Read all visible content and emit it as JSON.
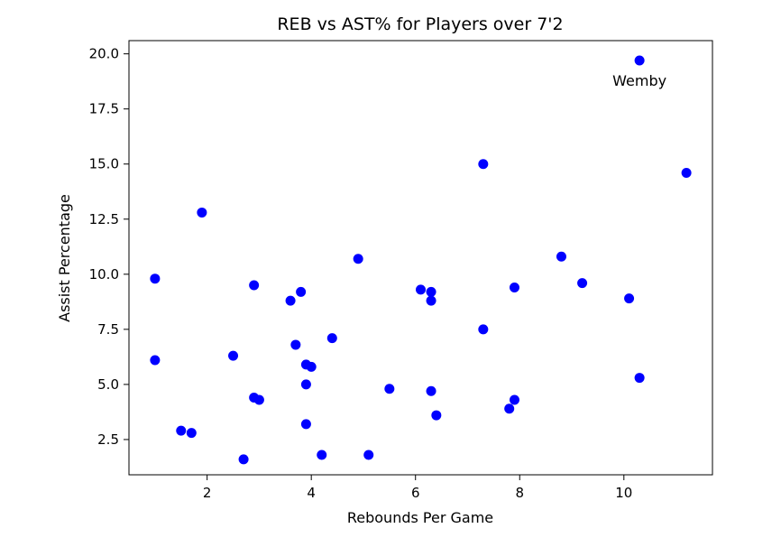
{
  "chart_data": {
    "type": "scatter",
    "title": "REB vs AST% for Players over 7'2",
    "xlabel": "Rebounds Per Game",
    "ylabel": "Assist Percentage",
    "xlim": [
      0.5,
      11.7
    ],
    "ylim": [
      0.9,
      20.6
    ],
    "xticks": [
      2,
      4,
      6,
      8,
      10
    ],
    "xtick_labels": [
      "2",
      "4",
      "6",
      "8",
      "10"
    ],
    "yticks": [
      2.5,
      5.0,
      7.5,
      10.0,
      12.5,
      15.0,
      17.5,
      20.0
    ],
    "ytick_labels": [
      "2.5",
      "5.0",
      "7.5",
      "10.0",
      "12.5",
      "15.0",
      "17.5",
      "20.0"
    ],
    "grid": false,
    "legend": "none",
    "marker_color": "#0000ff",
    "points": [
      {
        "x": 10.3,
        "y": 19.7
      },
      {
        "x": 7.3,
        "y": 15.0
      },
      {
        "x": 11.2,
        "y": 14.6
      },
      {
        "x": 1.9,
        "y": 12.8
      },
      {
        "x": 4.9,
        "y": 10.7
      },
      {
        "x": 8.8,
        "y": 10.8
      },
      {
        "x": 1.0,
        "y": 9.8
      },
      {
        "x": 9.2,
        "y": 9.6
      },
      {
        "x": 2.9,
        "y": 9.5
      },
      {
        "x": 7.9,
        "y": 9.4
      },
      {
        "x": 6.1,
        "y": 9.3
      },
      {
        "x": 6.3,
        "y": 9.2
      },
      {
        "x": 3.8,
        "y": 9.2
      },
      {
        "x": 10.1,
        "y": 8.9
      },
      {
        "x": 3.6,
        "y": 8.8
      },
      {
        "x": 6.3,
        "y": 8.8
      },
      {
        "x": 7.3,
        "y": 7.5
      },
      {
        "x": 4.4,
        "y": 7.1
      },
      {
        "x": 3.7,
        "y": 6.8
      },
      {
        "x": 2.5,
        "y": 6.3
      },
      {
        "x": 1.0,
        "y": 6.1
      },
      {
        "x": 3.9,
        "y": 5.9
      },
      {
        "x": 4.0,
        "y": 5.8
      },
      {
        "x": 10.3,
        "y": 5.3
      },
      {
        "x": 3.9,
        "y": 5.0
      },
      {
        "x": 5.5,
        "y": 4.8
      },
      {
        "x": 6.3,
        "y": 4.7
      },
      {
        "x": 2.9,
        "y": 4.4
      },
      {
        "x": 3.0,
        "y": 4.3
      },
      {
        "x": 7.9,
        "y": 4.3
      },
      {
        "x": 7.8,
        "y": 3.9
      },
      {
        "x": 6.4,
        "y": 3.6
      },
      {
        "x": 3.9,
        "y": 3.2
      },
      {
        "x": 1.5,
        "y": 2.9
      },
      {
        "x": 1.7,
        "y": 2.8
      },
      {
        "x": 4.2,
        "y": 1.8
      },
      {
        "x": 5.1,
        "y": 1.8
      },
      {
        "x": 2.7,
        "y": 1.6
      }
    ],
    "annotations": [
      {
        "text": "Wemby",
        "x": 10.3,
        "y": 19.7
      }
    ]
  }
}
